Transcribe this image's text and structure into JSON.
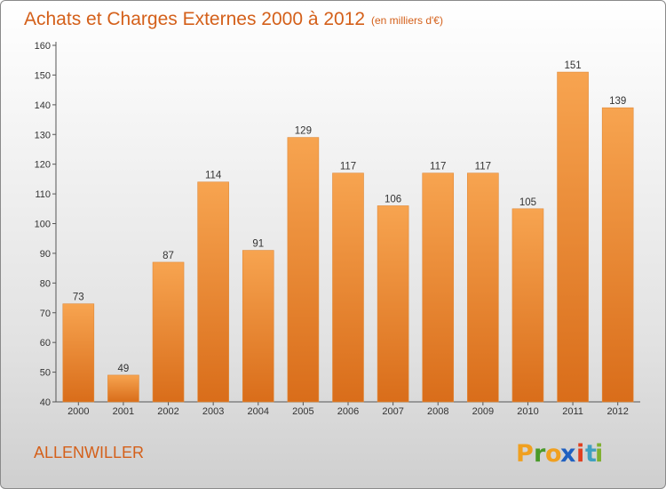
{
  "title": "Achats et Charges Externes 2000 à 2012",
  "subtitle": "(en milliers d'€)",
  "place_name": "ALLENWILLER",
  "logo": {
    "text": "Proxiti",
    "letters": [
      "P",
      "r",
      "o",
      "x",
      "i",
      "t",
      "i"
    ],
    "colors": [
      "#f0a020",
      "#4a9a2a",
      "#f0a020",
      "#2060c0",
      "#e04020",
      "#40a0c0",
      "#80b030"
    ]
  },
  "colors": {
    "bar_top": "#f7a450",
    "bar_bottom": "#d96d1a",
    "title": "#d4601a"
  },
  "chart_data": {
    "type": "bar",
    "title": "Achats et Charges Externes 2000 à 2012",
    "subtitle": "(en milliers d'€)",
    "categories": [
      "2000",
      "2001",
      "2002",
      "2003",
      "2004",
      "2005",
      "2006",
      "2007",
      "2008",
      "2009",
      "2010",
      "2011",
      "2012"
    ],
    "values": [
      73,
      49,
      87,
      114,
      91,
      129,
      117,
      106,
      117,
      117,
      105,
      151,
      139
    ],
    "ylim": [
      40,
      160
    ],
    "yticks": [
      40,
      50,
      60,
      70,
      80,
      90,
      100,
      110,
      120,
      130,
      140,
      150,
      160
    ],
    "grid": false,
    "xlabel": "",
    "ylabel": ""
  }
}
